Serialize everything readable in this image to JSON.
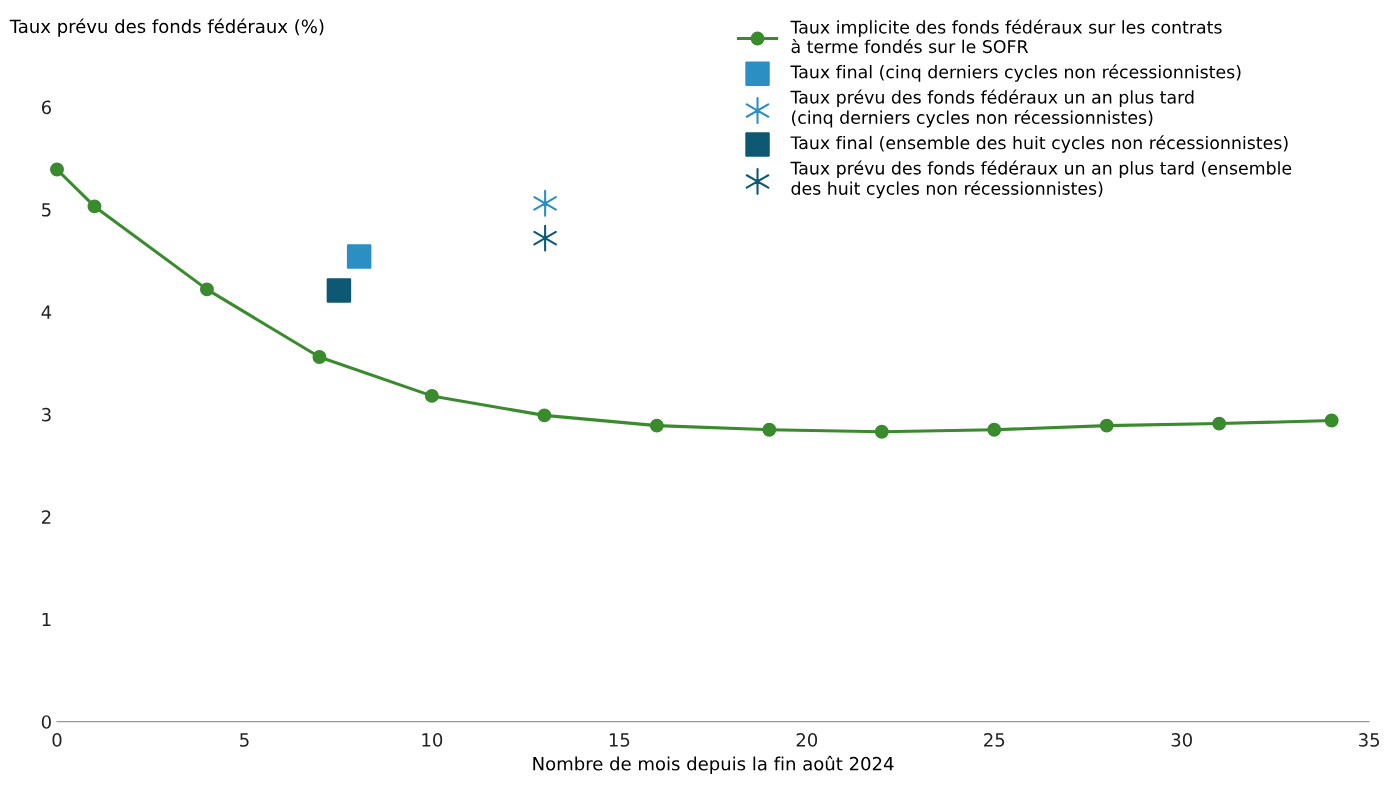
{
  "chart_data": {
    "type": "line",
    "ylabel": "Taux prévu des fonds fédéraux (%)",
    "xlabel": "Nombre de mois depuis la fin août 2024",
    "series": [
      {
        "name": "Taux implicite des fonds fédéraux sur les contrats\nà terme fondés sur le SOFR",
        "marker": "circle",
        "color": "#3a8a2e",
        "x": [
          0,
          1,
          4,
          7,
          10,
          13,
          16,
          19,
          22,
          25,
          28,
          31,
          34
        ],
        "values": [
          5.39,
          5.03,
          4.22,
          3.56,
          3.18,
          2.99,
          2.89,
          2.85,
          2.83,
          2.85,
          2.89,
          2.91,
          2.94
        ]
      },
      {
        "name": "Taux final (cinq derniers cycles non récessionnistes)",
        "type": "scatter",
        "marker": "square",
        "color": "#2b8fc4",
        "x": [
          8.06
        ],
        "values": [
          4.54
        ]
      },
      {
        "name": "Taux prévu des fonds fédéraux un an plus tard\n(cinq derniers cycles non récessionnistes)",
        "type": "scatter",
        "marker": "cross",
        "color": "#2b8fc4",
        "x": [
          13.02
        ],
        "values": [
          5.06
        ]
      },
      {
        "name": "Taux final (ensemble des huit cycles non récessionnistes)",
        "type": "scatter",
        "marker": "square",
        "color": "#0d5872",
        "x": [
          7.52
        ],
        "values": [
          4.21
        ]
      },
      {
        "name": "Taux prévu des fonds fédéraux un an plus tard (ensemble\ndes huit cycles non récessionnistes)",
        "type": "scatter",
        "marker": "cross",
        "color": "#0d5872",
        "x": [
          13.02
        ],
        "values": [
          4.72
        ]
      }
    ],
    "xlim": [
      0,
      35
    ],
    "xticks": [
      0,
      5,
      10,
      15,
      20,
      25,
      30,
      35
    ],
    "ylim": [
      0,
      6
    ],
    "yticks": [
      0,
      1,
      2,
      3,
      4,
      5,
      6
    ],
    "grid": false,
    "legend": "top right"
  }
}
